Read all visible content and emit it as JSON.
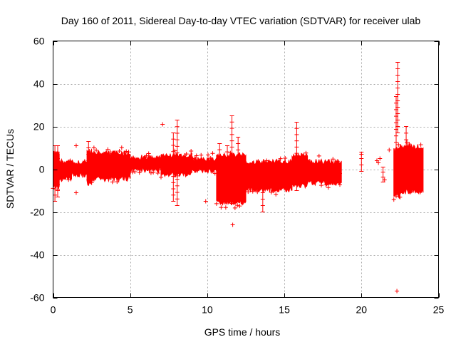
{
  "chart_data": {
    "type": "scatter",
    "title": "Day 160 of 2011, Sidereal Day-to-day VTEC variation (SDTVAR) for receiver ulab",
    "xlabel": "GPS time / hours",
    "ylabel": "SDTVAR / TECUs",
    "xlim": [
      0,
      25
    ],
    "ylim": [
      -60,
      60
    ],
    "xticks": [
      0,
      5,
      10,
      15,
      20,
      25
    ],
    "yticks": [
      -60,
      -40,
      -20,
      0,
      20,
      40,
      60
    ],
    "grid": true,
    "marker": "+",
    "series_color": "#ff0000",
    "bands": [
      {
        "x": [
          0.0,
          0.4
        ],
        "y": [
          -8,
          7
        ]
      },
      {
        "x": [
          0.4,
          1.2
        ],
        "y": [
          -4,
          3
        ]
      },
      {
        "x": [
          1.2,
          2.2
        ],
        "y": [
          -2,
          3
        ]
      },
      {
        "x": [
          2.2,
          2.5
        ],
        "y": [
          -6,
          8
        ]
      },
      {
        "x": [
          2.5,
          5.0
        ],
        "y": [
          -4,
          7
        ]
      },
      {
        "x": [
          5.0,
          7.0
        ],
        "y": [
          0,
          5
        ]
      },
      {
        "x": [
          7.0,
          9.0
        ],
        "y": [
          -2,
          6
        ]
      },
      {
        "x": [
          9.0,
          10.6
        ],
        "y": [
          0,
          4
        ]
      },
      {
        "x": [
          10.6,
          12.5
        ],
        "y": [
          -15,
          6
        ]
      },
      {
        "x": [
          12.5,
          15.5
        ],
        "y": [
          -9,
          3
        ]
      },
      {
        "x": [
          15.5,
          16.5
        ],
        "y": [
          -7,
          6
        ]
      },
      {
        "x": [
          16.5,
          18.7
        ],
        "y": [
          -6,
          3
        ]
      },
      {
        "x": [
          22.1,
          22.5
        ],
        "y": [
          -12,
          9
        ]
      },
      {
        "x": [
          22.5,
          24.0
        ],
        "y": [
          -10,
          10
        ]
      }
    ],
    "spikes": [
      {
        "x": 0.12,
        "y": [
          -15,
          11
        ]
      },
      {
        "x": 0.3,
        "y": [
          -13,
          11
        ]
      },
      {
        "x": 2.3,
        "y": [
          -5,
          13
        ]
      },
      {
        "x": 7.8,
        "y": [
          -15,
          17
        ]
      },
      {
        "x": 8.05,
        "y": [
          -17,
          23
        ]
      },
      {
        "x": 10.8,
        "y": [
          -14,
          12
        ]
      },
      {
        "x": 11.3,
        "y": [
          -12,
          11
        ]
      },
      {
        "x": 11.6,
        "y": [
          -16,
          25
        ]
      },
      {
        "x": 12.0,
        "y": [
          -12,
          15
        ]
      },
      {
        "x": 13.6,
        "y": [
          -20,
          -5
        ]
      },
      {
        "x": 15.8,
        "y": [
          -10,
          22
        ]
      },
      {
        "x": 20.0,
        "y": [
          -1,
          8
        ]
      },
      {
        "x": 21.4,
        "y": [
          -6,
          1
        ]
      },
      {
        "x": 22.25,
        "y": [
          -12,
          34
        ]
      },
      {
        "x": 22.35,
        "y": [
          17,
          50
        ]
      },
      {
        "x": 22.9,
        "y": [
          -8,
          20
        ]
      }
    ],
    "points": [
      {
        "x": 1.5,
        "y": 11
      },
      {
        "x": 1.5,
        "y": -11
      },
      {
        "x": 7.1,
        "y": 21
      },
      {
        "x": 9.9,
        "y": -15
      },
      {
        "x": 11.65,
        "y": -26
      },
      {
        "x": 18.6,
        "y": -2
      },
      {
        "x": 20.0,
        "y": 7
      },
      {
        "x": 21.0,
        "y": 4
      },
      {
        "x": 21.1,
        "y": 3
      },
      {
        "x": 21.2,
        "y": 5
      },
      {
        "x": 21.5,
        "y": -5
      },
      {
        "x": 21.8,
        "y": 9
      },
      {
        "x": 22.3,
        "y": -57
      }
    ]
  }
}
